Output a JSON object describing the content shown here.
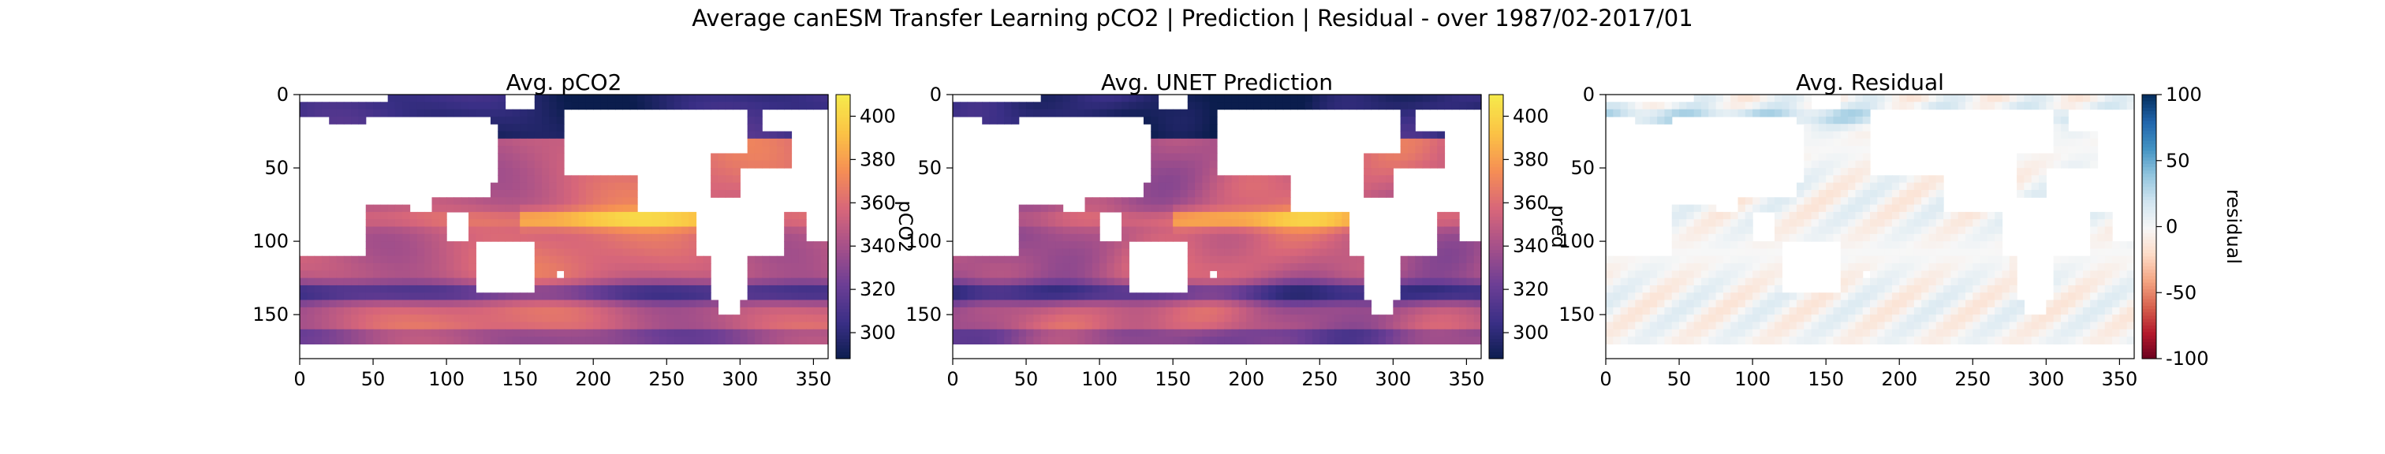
{
  "figure": {
    "suptitle": "Average canESM Transfer Learning pCO2 | Prediction | Residual - over 1987/02-2017/01"
  },
  "chart_data": [
    {
      "type": "heatmap",
      "title": "Avg. pCO2",
      "xlim": [
        0,
        360
      ],
      "ylim": [
        180,
        0
      ],
      "xticks": [
        0,
        50,
        100,
        150,
        200,
        250,
        300,
        350
      ],
      "yticks": [
        0,
        50,
        100,
        150
      ],
      "colorbar": {
        "label": "pCO2",
        "range": [
          288,
          410
        ],
        "ticks": [
          300,
          320,
          340,
          360,
          380,
          400
        ]
      },
      "colormap": [
        "#0b1d4d",
        "#3a2f86",
        "#6c3e95",
        "#a5508a",
        "#d7667a",
        "#f58d55",
        "#fbc245",
        "#f6e94b"
      ]
    },
    {
      "type": "heatmap",
      "title": "Avg. UNET Prediction",
      "xlim": [
        0,
        360
      ],
      "ylim": [
        180,
        0
      ],
      "xticks": [
        0,
        50,
        100,
        150,
        200,
        250,
        300,
        350
      ],
      "yticks": [
        0,
        50,
        100,
        150
      ],
      "colorbar": {
        "label": "pred",
        "range": [
          288,
          410
        ],
        "ticks": [
          300,
          320,
          340,
          360,
          380,
          400
        ]
      },
      "colormap": [
        "#0b1d4d",
        "#3a2f86",
        "#6c3e95",
        "#a5508a",
        "#d7667a",
        "#f58d55",
        "#fbc245",
        "#f6e94b"
      ]
    },
    {
      "type": "heatmap",
      "title": "Avg. Residual",
      "xlim": [
        0,
        360
      ],
      "ylim": [
        180,
        0
      ],
      "xticks": [
        0,
        50,
        100,
        150,
        200,
        250,
        300,
        350
      ],
      "yticks": [
        0,
        50,
        100,
        150
      ],
      "colorbar": {
        "label": "residual",
        "range": [
          -100,
          100
        ],
        "ticks": [
          100,
          50,
          0,
          -50,
          -100
        ]
      },
      "colormap": [
        "#67001f",
        "#b2182b",
        "#d6604d",
        "#f4a582",
        "#fddbc7",
        "#f7f7f7",
        "#d1e5f0",
        "#92c5de",
        "#4393c3",
        "#2166ac",
        "#053061"
      ]
    }
  ]
}
